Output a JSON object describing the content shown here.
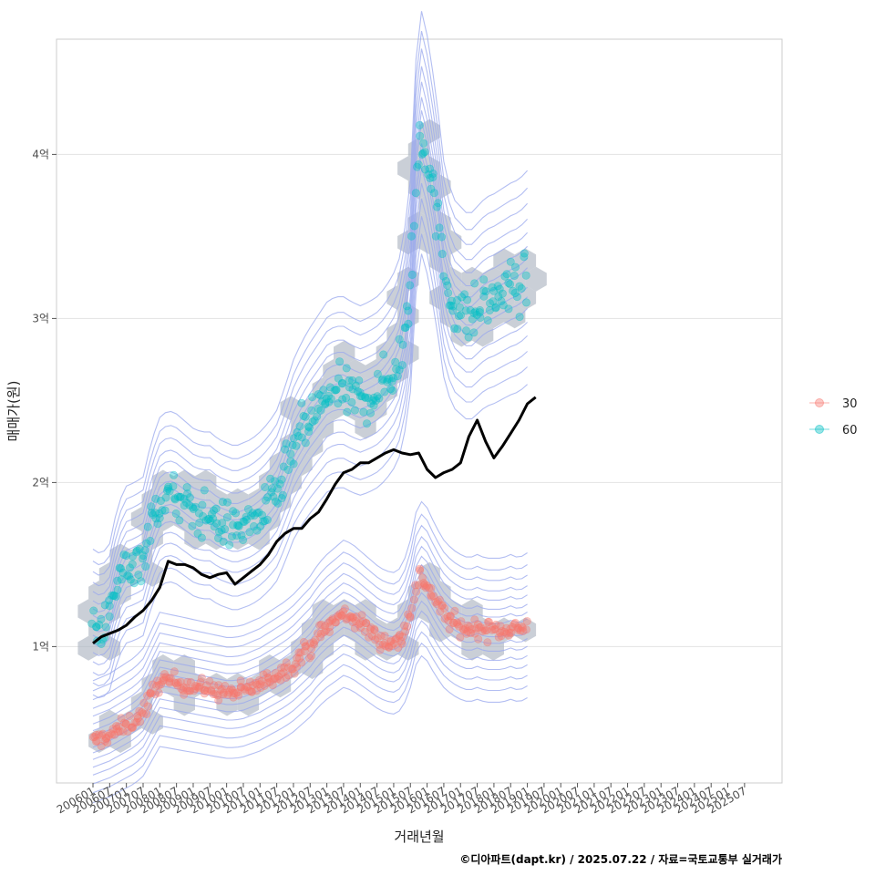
{
  "chart_data": {
    "type": "scatter",
    "xlabel": "거래년월",
    "ylabel": "매매가(원)",
    "caption": "©디아파트(dapt.kr) / 2025.07.22 / 자료=국토교통부 실거래가",
    "x_ticks": [
      "200601",
      "200607",
      "200701",
      "200707",
      "200801",
      "200807",
      "200901",
      "200907",
      "201001",
      "201007",
      "201101",
      "201107",
      "201201",
      "201207",
      "201301",
      "201307",
      "201401",
      "201407",
      "201501",
      "201507",
      "201601",
      "201607",
      "201701",
      "201707",
      "201801",
      "201807",
      "201901",
      "201907",
      "202001",
      "202007",
      "202101",
      "202107",
      "202201",
      "202207",
      "202301",
      "202307",
      "202401",
      "202407",
      "202501",
      "202507"
    ],
    "y_ticks": [
      {
        "value": 1,
        "label": "1억"
      },
      {
        "value": 2,
        "label": "2억"
      },
      {
        "value": 3,
        "label": "3억"
      },
      {
        "value": 4,
        "label": "4억"
      }
    ],
    "ylim": [
      0.18,
      4.7
    ],
    "grid": true,
    "legend_position": "right",
    "colors": {
      "series_30": "#f8766d",
      "series_60": "#00bfc4",
      "average_line": "#000000",
      "hexbin": "#a9b1bf",
      "contour": "#9aa8ee",
      "grid": "#e3e3e3",
      "panel_border": "#cccccc"
    },
    "series": [
      {
        "name": "30",
        "color": "#f8766d",
        "trend": [
          [
            0,
            0.42
          ],
          [
            3,
            0.44
          ],
          [
            6,
            0.46
          ],
          [
            9,
            0.49
          ],
          [
            12,
            0.52
          ],
          [
            15,
            0.55
          ],
          [
            18,
            0.6
          ],
          [
            21,
            0.7
          ],
          [
            24,
            0.8
          ],
          [
            27,
            0.79
          ],
          [
            30,
            0.78
          ],
          [
            33,
            0.77
          ],
          [
            36,
            0.76
          ],
          [
            39,
            0.75
          ],
          [
            42,
            0.74
          ],
          [
            45,
            0.73
          ],
          [
            48,
            0.72
          ],
          [
            51,
            0.72
          ],
          [
            54,
            0.73
          ],
          [
            57,
            0.75
          ],
          [
            60,
            0.77
          ],
          [
            63,
            0.8
          ],
          [
            66,
            0.83
          ],
          [
            69,
            0.86
          ],
          [
            72,
            0.9
          ],
          [
            75,
            0.95
          ],
          [
            78,
            1.0
          ],
          [
            81,
            1.07
          ],
          [
            84,
            1.12
          ],
          [
            87,
            1.16
          ],
          [
            90,
            1.2
          ],
          [
            93,
            1.18
          ],
          [
            96,
            1.14
          ],
          [
            99,
            1.1
          ],
          [
            102,
            1.06
          ],
          [
            105,
            1.03
          ],
          [
            108,
            1.02
          ],
          [
            111,
            1.05
          ],
          [
            114,
            1.2
          ],
          [
            117,
            1.43
          ],
          [
            120,
            1.38
          ],
          [
            123,
            1.28
          ],
          [
            126,
            1.2
          ],
          [
            129,
            1.15
          ],
          [
            132,
            1.12
          ],
          [
            135,
            1.1
          ],
          [
            138,
            1.12
          ],
          [
            141,
            1.1
          ],
          [
            144,
            1.1
          ],
          [
            147,
            1.1
          ],
          [
            150,
            1.12
          ],
          [
            153,
            1.1
          ],
          [
            156,
            1.13
          ]
        ]
      },
      {
        "name": "60",
        "color": "#00bfc4",
        "trend": [
          [
            0,
            1.15
          ],
          [
            3,
            1.12
          ],
          [
            6,
            1.18
          ],
          [
            9,
            1.4
          ],
          [
            12,
            1.5
          ],
          [
            15,
            1.52
          ],
          [
            18,
            1.55
          ],
          [
            21,
            1.75
          ],
          [
            24,
            1.88
          ],
          [
            27,
            1.92
          ],
          [
            30,
            1.9
          ],
          [
            33,
            1.86
          ],
          [
            36,
            1.82
          ],
          [
            39,
            1.8
          ],
          [
            42,
            1.8
          ],
          [
            45,
            1.76
          ],
          [
            48,
            1.74
          ],
          [
            51,
            1.72
          ],
          [
            54,
            1.74
          ],
          [
            57,
            1.76
          ],
          [
            60,
            1.8
          ],
          [
            63,
            1.85
          ],
          [
            66,
            1.92
          ],
          [
            69,
            2.05
          ],
          [
            72,
            2.2
          ],
          [
            75,
            2.3
          ],
          [
            78,
            2.38
          ],
          [
            81,
            2.45
          ],
          [
            84,
            2.52
          ],
          [
            87,
            2.55
          ],
          [
            90,
            2.55
          ],
          [
            93,
            2.52
          ],
          [
            96,
            2.5
          ],
          [
            99,
            2.52
          ],
          [
            102,
            2.55
          ],
          [
            105,
            2.6
          ],
          [
            108,
            2.68
          ],
          [
            111,
            2.8
          ],
          [
            114,
            3.2
          ],
          [
            117,
            4.2
          ],
          [
            120,
            4.0
          ],
          [
            123,
            3.7
          ],
          [
            126,
            3.3
          ],
          [
            129,
            3.1
          ],
          [
            132,
            3.05
          ],
          [
            135,
            3.0
          ],
          [
            138,
            3.05
          ],
          [
            141,
            3.1
          ],
          [
            144,
            3.12
          ],
          [
            147,
            3.15
          ],
          [
            150,
            3.18
          ],
          [
            153,
            3.2
          ],
          [
            156,
            3.25
          ]
        ]
      }
    ],
    "average_line": [
      [
        0,
        1.02
      ],
      [
        3,
        1.06
      ],
      [
        6,
        1.08
      ],
      [
        9,
        1.1
      ],
      [
        12,
        1.13
      ],
      [
        15,
        1.18
      ],
      [
        18,
        1.22
      ],
      [
        21,
        1.28
      ],
      [
        24,
        1.36
      ],
      [
        27,
        1.52
      ],
      [
        30,
        1.5
      ],
      [
        33,
        1.5
      ],
      [
        36,
        1.48
      ],
      [
        39,
        1.44
      ],
      [
        42,
        1.42
      ],
      [
        45,
        1.44
      ],
      [
        48,
        1.45
      ],
      [
        51,
        1.38
      ],
      [
        54,
        1.42
      ],
      [
        57,
        1.46
      ],
      [
        60,
        1.5
      ],
      [
        63,
        1.56
      ],
      [
        66,
        1.64
      ],
      [
        69,
        1.69
      ],
      [
        72,
        1.72
      ],
      [
        75,
        1.72
      ],
      [
        78,
        1.78
      ],
      [
        81,
        1.82
      ],
      [
        84,
        1.9
      ],
      [
        87,
        1.99
      ],
      [
        90,
        2.06
      ],
      [
        93,
        2.08
      ],
      [
        96,
        2.12
      ],
      [
        99,
        2.12
      ],
      [
        102,
        2.15
      ],
      [
        105,
        2.18
      ],
      [
        108,
        2.2
      ],
      [
        111,
        2.18
      ],
      [
        114,
        2.17
      ],
      [
        117,
        2.18
      ],
      [
        120,
        2.08
      ],
      [
        123,
        2.03
      ],
      [
        126,
        2.06
      ],
      [
        129,
        2.08
      ],
      [
        132,
        2.12
      ],
      [
        135,
        2.28
      ],
      [
        138,
        2.38
      ],
      [
        141,
        2.25
      ],
      [
        144,
        2.15
      ],
      [
        147,
        2.22
      ],
      [
        150,
        2.3
      ],
      [
        153,
        2.38
      ],
      [
        156,
        2.48
      ],
      [
        159,
        2.52
      ]
    ]
  }
}
